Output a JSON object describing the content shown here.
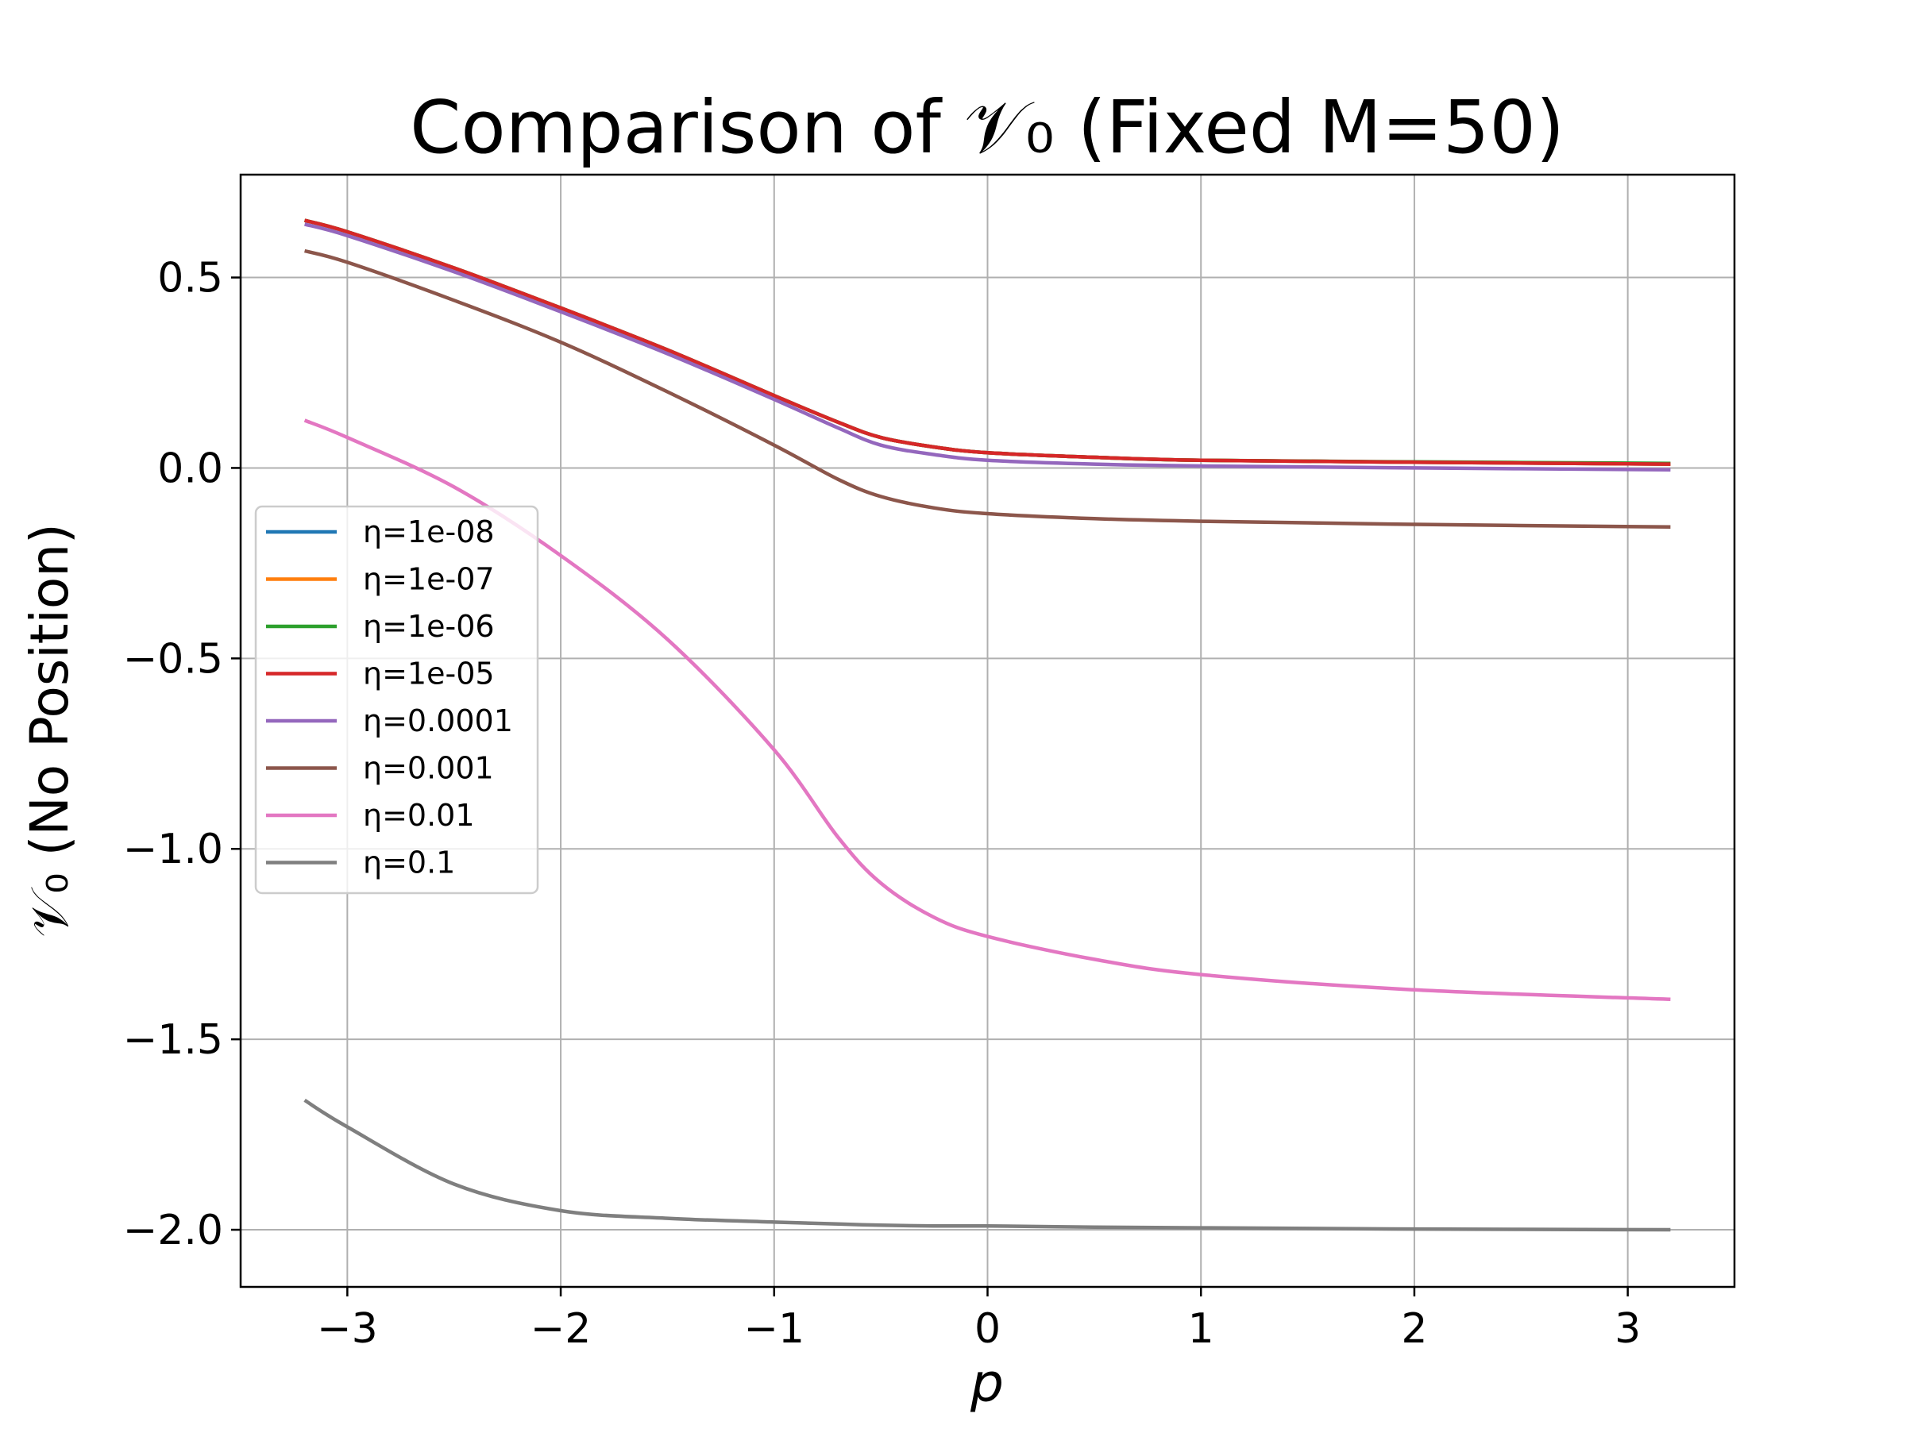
{
  "chart_data": {
    "type": "line",
    "title": "Comparison of 𝒱₀ (Fixed M=50)",
    "xlabel": "p",
    "ylabel": "𝒱₀ (No Position)",
    "xlim": [
      -3.5,
      3.5
    ],
    "ylim": [
      -2.15,
      0.77
    ],
    "xticks": [
      -3,
      -2,
      -1,
      0,
      1,
      2,
      3
    ],
    "xtick_labels": [
      "−3",
      "−2",
      "−1",
      "0",
      "1",
      "2",
      "3"
    ],
    "yticks": [
      0.5,
      0.0,
      -0.5,
      -1.0,
      -1.5,
      -2.0
    ],
    "ytick_labels": [
      "0.5",
      "0.0",
      "−0.5",
      "−1.0",
      "−1.5",
      "−2.0"
    ],
    "grid": true,
    "legend_position": "center-left",
    "x": [
      -3.2,
      -3.0,
      -2.5,
      -2.0,
      -1.5,
      -1.0,
      -0.7,
      -0.5,
      -0.25,
      0.0,
      0.5,
      1.0,
      2.0,
      3.2
    ],
    "series": [
      {
        "name": "η=1e-08",
        "color": "#1f77b4",
        "values": [
          0.65,
          0.62,
          0.525,
          0.42,
          0.31,
          0.19,
          0.12,
          0.08,
          0.055,
          0.04,
          0.028,
          0.02,
          0.015,
          0.01
        ]
      },
      {
        "name": "η=1e-07",
        "color": "#ff7f0e",
        "values": [
          0.65,
          0.62,
          0.525,
          0.42,
          0.31,
          0.19,
          0.12,
          0.08,
          0.055,
          0.04,
          0.028,
          0.02,
          0.015,
          0.01
        ]
      },
      {
        "name": "η=1e-06",
        "color": "#2ca02c",
        "values": [
          0.65,
          0.62,
          0.525,
          0.42,
          0.31,
          0.19,
          0.12,
          0.08,
          0.055,
          0.04,
          0.028,
          0.02,
          0.016,
          0.012
        ]
      },
      {
        "name": "η=1e-05",
        "color": "#d62728",
        "values": [
          0.65,
          0.62,
          0.525,
          0.42,
          0.31,
          0.19,
          0.12,
          0.08,
          0.055,
          0.04,
          0.028,
          0.02,
          0.015,
          0.01
        ]
      },
      {
        "name": "η=0.0001",
        "color": "#9467bd",
        "values": [
          0.64,
          0.61,
          0.515,
          0.41,
          0.3,
          0.18,
          0.105,
          0.06,
          0.035,
          0.02,
          0.01,
          0.005,
          0.0,
          -0.005
        ]
      },
      {
        "name": "η=0.001",
        "color": "#8c564b",
        "values": [
          0.57,
          0.54,
          0.44,
          0.33,
          0.2,
          0.06,
          -0.03,
          -0.075,
          -0.105,
          -0.12,
          -0.133,
          -0.14,
          -0.148,
          -0.155
        ]
      },
      {
        "name": "η=0.01",
        "color": "#e377c2",
        "values": [
          0.125,
          0.08,
          -0.05,
          -0.23,
          -0.45,
          -0.74,
          -0.97,
          -1.09,
          -1.18,
          -1.23,
          -1.29,
          -1.33,
          -1.37,
          -1.395
        ]
      },
      {
        "name": "η=0.1",
        "color": "#7f7f7f",
        "values": [
          -1.66,
          -1.73,
          -1.88,
          -1.95,
          -1.97,
          -1.98,
          -1.985,
          -1.988,
          -1.99,
          -1.99,
          -1.993,
          -1.995,
          -1.998,
          -2.0
        ]
      }
    ]
  }
}
